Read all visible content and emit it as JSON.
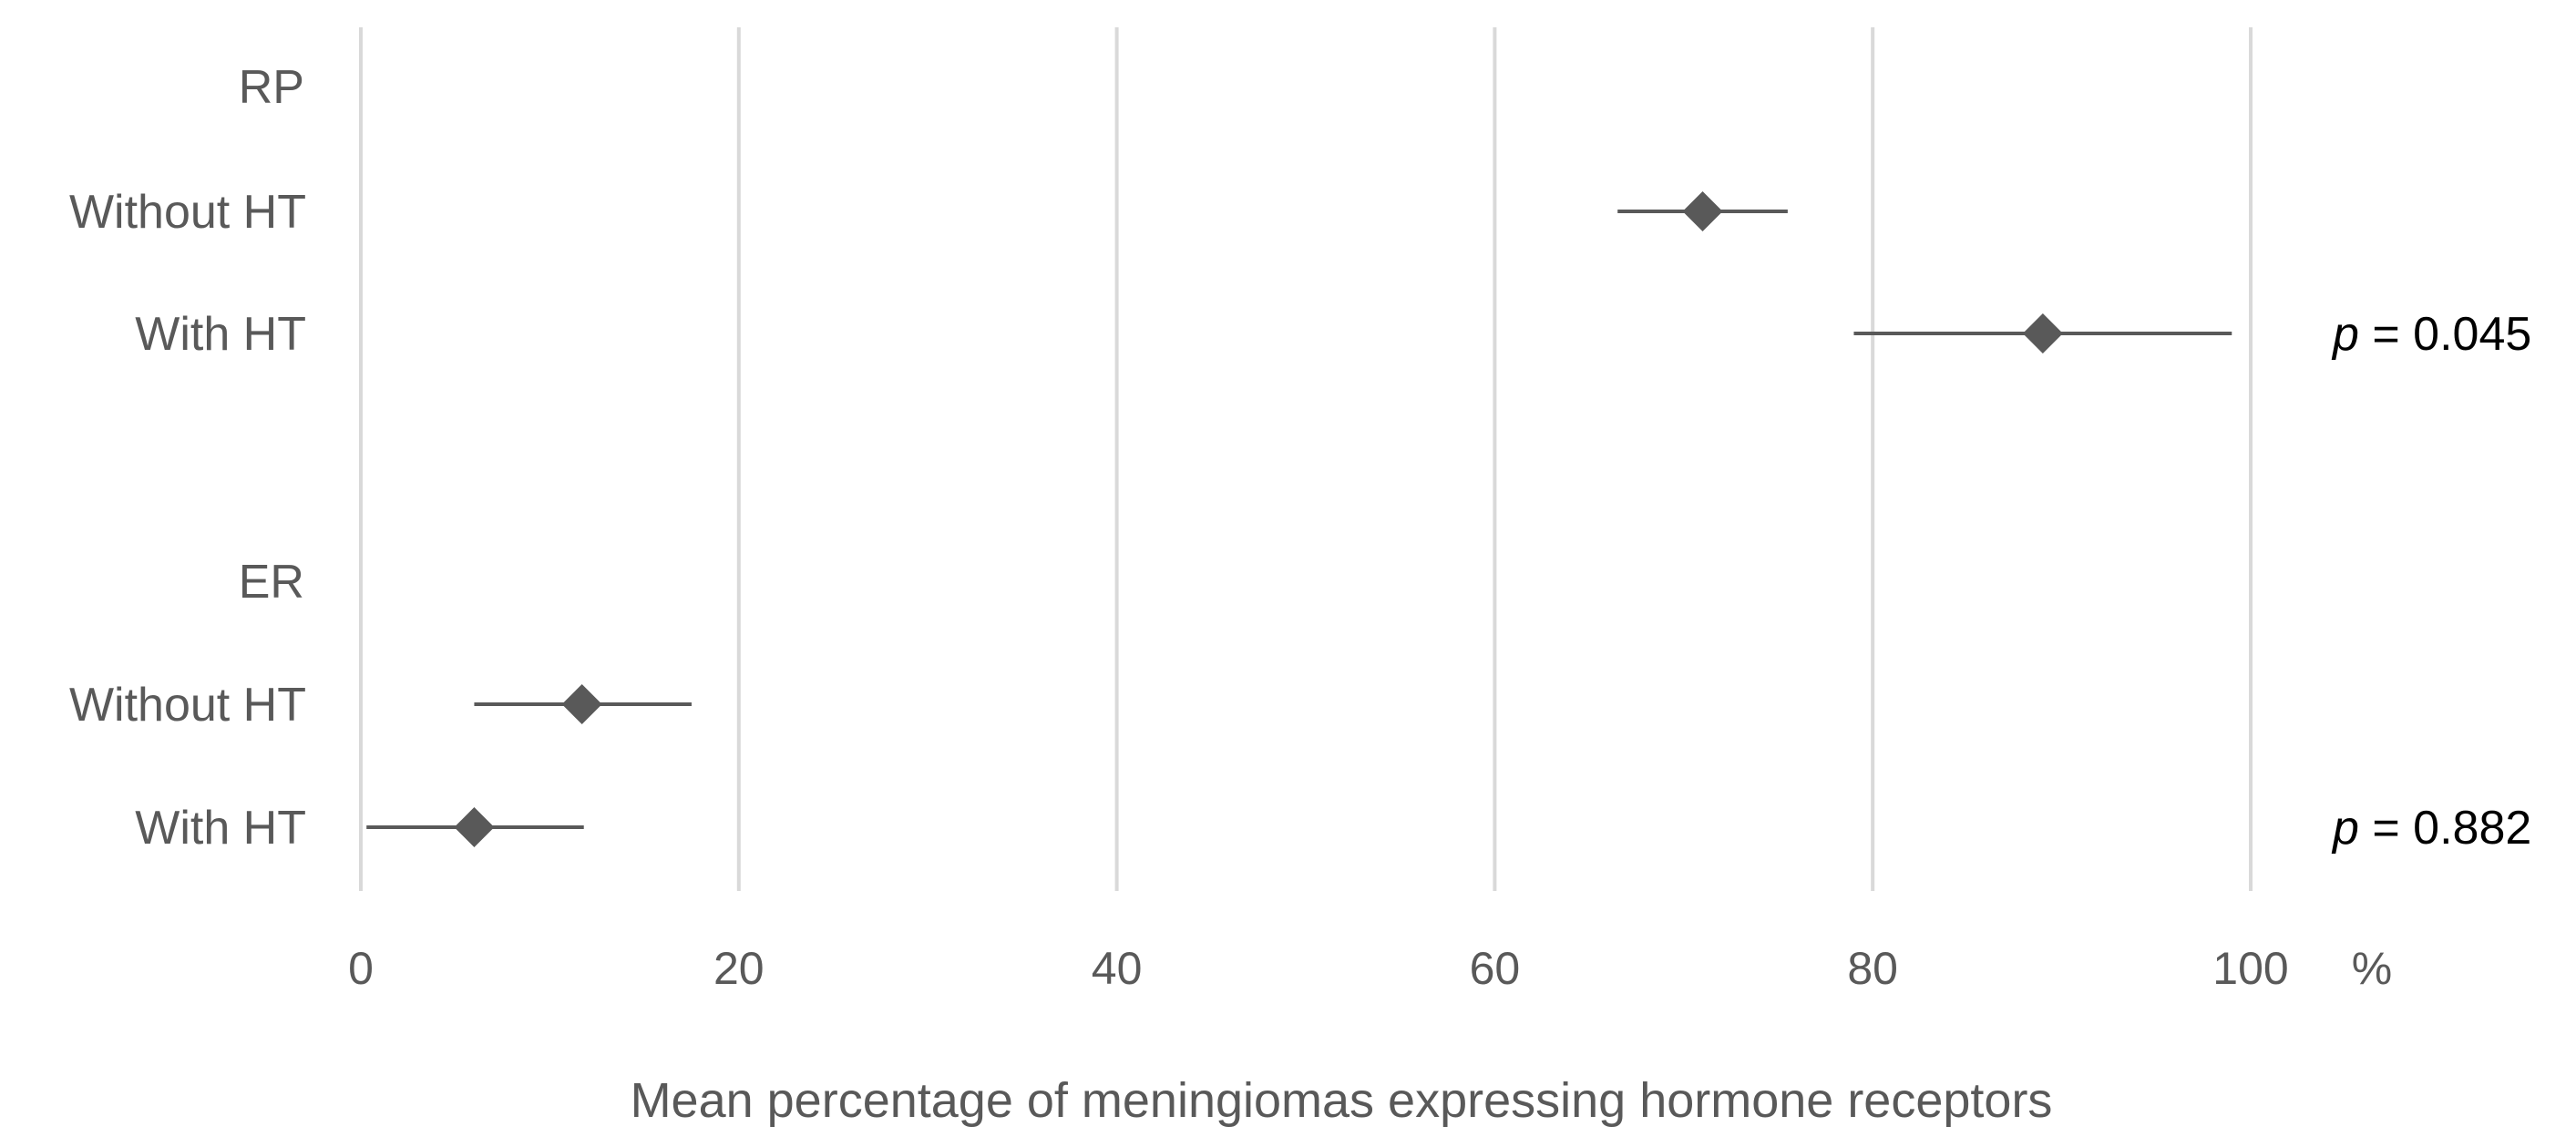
{
  "chart_data": {
    "type": "scatter",
    "subtype": "forest-plot",
    "title": "",
    "xlabel": "Mean percentage of meningiomas expressing hormone receptors",
    "x_unit": "%",
    "xlim": [
      0,
      100
    ],
    "xticks": [
      "0",
      "20",
      "40",
      "60",
      "80",
      "100"
    ],
    "grid": true,
    "colors": {
      "marker": "#595959",
      "grid": "#d9d9d9",
      "text": "#595959",
      "p_text": "#000000"
    },
    "groups": [
      {
        "name": "RP",
        "rows": [
          {
            "label": "Without HT",
            "mean": 71,
            "ci_low": 66.5,
            "ci_high": 75.5
          },
          {
            "label": "With HT",
            "mean": 89,
            "ci_low": 79,
            "ci_high": 99
          }
        ],
        "p_label": "p",
        "p_value": "= 0.045"
      },
      {
        "name": "ER",
        "rows": [
          {
            "label": "Without HT",
            "mean": 11.7,
            "ci_low": 6,
            "ci_high": 17.5
          },
          {
            "label": "With HT",
            "mean": 6,
            "ci_low": 0.3,
            "ci_high": 11.8
          }
        ],
        "p_label": "p",
        "p_value": "= 0.882"
      }
    ]
  }
}
